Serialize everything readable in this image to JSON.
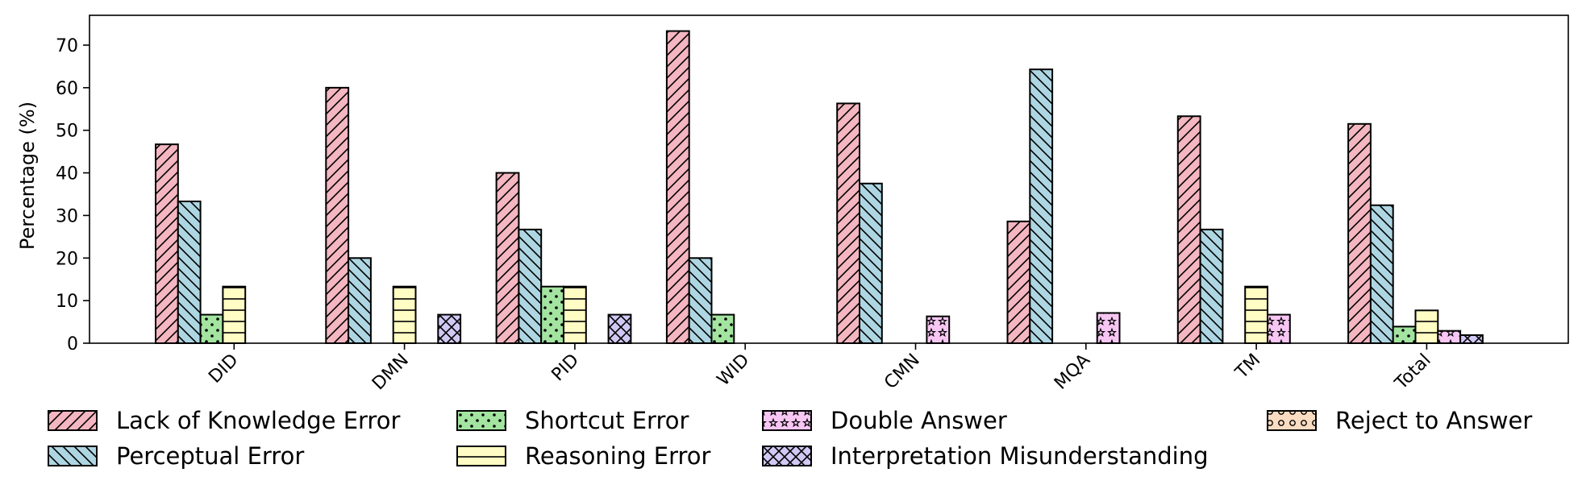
{
  "chart_data": {
    "type": "bar",
    "title": "",
    "xlabel": "",
    "ylabel": "Percentage (%)",
    "ylim": [
      0,
      77
    ],
    "yticks": [
      0,
      10,
      20,
      30,
      40,
      50,
      60,
      70
    ],
    "grid": false,
    "legend_placement": "bottom",
    "categories": [
      "DID",
      "DMN",
      "PID",
      "WID",
      "CMN",
      "MQA",
      "TM",
      "Total"
    ],
    "series": [
      {
        "name": "Lack of Knowledge Error",
        "color": "#f4b6c0",
        "pattern": "diagonal-forward",
        "values": [
          46.7,
          60.0,
          40.0,
          73.3,
          56.3,
          28.6,
          53.3,
          51.5
        ]
      },
      {
        "name": "Perceptual Error",
        "color": "#aed6e2",
        "pattern": "diagonal-back",
        "values": [
          33.3,
          20.0,
          26.7,
          20.0,
          37.5,
          64.3,
          26.7,
          32.4
        ]
      },
      {
        "name": "Shortcut Error",
        "color": "#a3e4a0",
        "pattern": "dots",
        "values": [
          6.7,
          0,
          13.3,
          6.7,
          0,
          0,
          0,
          3.9
        ]
      },
      {
        "name": "Reasoning Error",
        "color": "#fffcc4",
        "pattern": "horizontal",
        "values": [
          13.3,
          13.3,
          13.3,
          0,
          0,
          0,
          13.3,
          7.7
        ]
      },
      {
        "name": "Double Answer",
        "color": "#f7c6f3",
        "pattern": "stars",
        "values": [
          0,
          0,
          0,
          0,
          6.3,
          7.1,
          6.7,
          2.9
        ]
      },
      {
        "name": "Interpretation Misunderstanding",
        "color": "#d1c8f4",
        "pattern": "cross",
        "values": [
          0,
          6.7,
          6.7,
          0,
          0,
          0,
          0,
          1.9
        ]
      },
      {
        "name": "Reject to Answer",
        "color": "#f9dcc2",
        "pattern": "circles",
        "values": [
          0,
          0,
          0,
          0,
          0,
          0,
          0,
          0
        ]
      }
    ]
  }
}
